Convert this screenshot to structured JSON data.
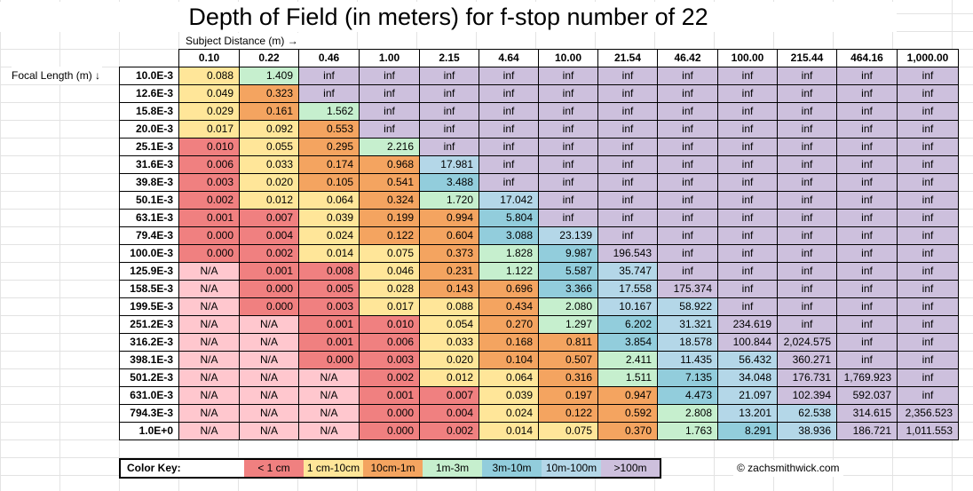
{
  "title": "Depth of Field (in meters) for f-stop number of 22",
  "subject_label": "Subject Distance (m) →",
  "focal_label": "Focal Length (m) ↓",
  "columns": [
    "0.10",
    "0.22",
    "0.46",
    "1.00",
    "2.15",
    "4.64",
    "10.00",
    "21.54",
    "46.42",
    "100.00",
    "215.44",
    "464.16",
    "1,000.00"
  ],
  "rows": [
    {
      "focal": "10.0E-3",
      "cells": [
        "0.088",
        "1.409",
        "inf",
        "inf",
        "inf",
        "inf",
        "inf",
        "inf",
        "inf",
        "inf",
        "inf",
        "inf",
        "inf"
      ],
      "cls": [
        "c2",
        "c4",
        "c7",
        "c7",
        "c7",
        "c7",
        "c7",
        "c7",
        "c7",
        "c7",
        "c7",
        "c7",
        "c7"
      ]
    },
    {
      "focal": "12.6E-3",
      "cells": [
        "0.049",
        "0.323",
        "inf",
        "inf",
        "inf",
        "inf",
        "inf",
        "inf",
        "inf",
        "inf",
        "inf",
        "inf",
        "inf"
      ],
      "cls": [
        "c2",
        "c3",
        "c7",
        "c7",
        "c7",
        "c7",
        "c7",
        "c7",
        "c7",
        "c7",
        "c7",
        "c7",
        "c7"
      ]
    },
    {
      "focal": "15.8E-3",
      "cells": [
        "0.029",
        "0.161",
        "1.562",
        "inf",
        "inf",
        "inf",
        "inf",
        "inf",
        "inf",
        "inf",
        "inf",
        "inf",
        "inf"
      ],
      "cls": [
        "c2",
        "c3",
        "c4",
        "c7",
        "c7",
        "c7",
        "c7",
        "c7",
        "c7",
        "c7",
        "c7",
        "c7",
        "c7"
      ]
    },
    {
      "focal": "20.0E-3",
      "cells": [
        "0.017",
        "0.092",
        "0.553",
        "inf",
        "inf",
        "inf",
        "inf",
        "inf",
        "inf",
        "inf",
        "inf",
        "inf",
        "inf"
      ],
      "cls": [
        "c2",
        "c2",
        "c3",
        "c7",
        "c7",
        "c7",
        "c7",
        "c7",
        "c7",
        "c7",
        "c7",
        "c7",
        "c7"
      ]
    },
    {
      "focal": "25.1E-3",
      "cells": [
        "0.010",
        "0.055",
        "0.295",
        "2.216",
        "inf",
        "inf",
        "inf",
        "inf",
        "inf",
        "inf",
        "inf",
        "inf",
        "inf"
      ],
      "cls": [
        "c1",
        "c2",
        "c3",
        "c4",
        "c7",
        "c7",
        "c7",
        "c7",
        "c7",
        "c7",
        "c7",
        "c7",
        "c7"
      ]
    },
    {
      "focal": "31.6E-3",
      "cells": [
        "0.006",
        "0.033",
        "0.174",
        "0.968",
        "17.981",
        "inf",
        "inf",
        "inf",
        "inf",
        "inf",
        "inf",
        "inf",
        "inf"
      ],
      "cls": [
        "c1",
        "c2",
        "c3",
        "c3",
        "c6",
        "c7",
        "c7",
        "c7",
        "c7",
        "c7",
        "c7",
        "c7",
        "c7"
      ]
    },
    {
      "focal": "39.8E-3",
      "cells": [
        "0.003",
        "0.020",
        "0.105",
        "0.541",
        "3.488",
        "inf",
        "inf",
        "inf",
        "inf",
        "inf",
        "inf",
        "inf",
        "inf"
      ],
      "cls": [
        "c1",
        "c2",
        "c3",
        "c3",
        "c5",
        "c7",
        "c7",
        "c7",
        "c7",
        "c7",
        "c7",
        "c7",
        "c7"
      ]
    },
    {
      "focal": "50.1E-3",
      "cells": [
        "0.002",
        "0.012",
        "0.064",
        "0.324",
        "1.720",
        "17.042",
        "inf",
        "inf",
        "inf",
        "inf",
        "inf",
        "inf",
        "inf"
      ],
      "cls": [
        "c1",
        "c2",
        "c2",
        "c3",
        "c4",
        "c6",
        "c7",
        "c7",
        "c7",
        "c7",
        "c7",
        "c7",
        "c7"
      ]
    },
    {
      "focal": "63.1E-3",
      "cells": [
        "0.001",
        "0.007",
        "0.039",
        "0.199",
        "0.994",
        "5.804",
        "inf",
        "inf",
        "inf",
        "inf",
        "inf",
        "inf",
        "inf"
      ],
      "cls": [
        "c1",
        "c1",
        "c2",
        "c3",
        "c3",
        "c5",
        "c7",
        "c7",
        "c7",
        "c7",
        "c7",
        "c7",
        "c7"
      ]
    },
    {
      "focal": "79.4E-3",
      "cells": [
        "0.000",
        "0.004",
        "0.024",
        "0.122",
        "0.604",
        "3.088",
        "23.139",
        "inf",
        "inf",
        "inf",
        "inf",
        "inf",
        "inf"
      ],
      "cls": [
        "c1",
        "c1",
        "c2",
        "c3",
        "c3",
        "c5",
        "c6",
        "c7",
        "c7",
        "c7",
        "c7",
        "c7",
        "c7"
      ]
    },
    {
      "focal": "100.0E-3",
      "cells": [
        "0.000",
        "0.002",
        "0.014",
        "0.075",
        "0.373",
        "1.828",
        "9.987",
        "196.543",
        "inf",
        "inf",
        "inf",
        "inf",
        "inf"
      ],
      "cls": [
        "c1",
        "c1",
        "c2",
        "c2",
        "c3",
        "c4",
        "c5",
        "c7",
        "c7",
        "c7",
        "c7",
        "c7",
        "c7"
      ]
    },
    {
      "focal": "125.9E-3",
      "cells": [
        "N/A",
        "0.001",
        "0.008",
        "0.046",
        "0.231",
        "1.122",
        "5.587",
        "35.747",
        "inf",
        "inf",
        "inf",
        "inf",
        "inf"
      ],
      "cls": [
        "na",
        "c1",
        "c1",
        "c2",
        "c3",
        "c4",
        "c5",
        "c6",
        "c7",
        "c7",
        "c7",
        "c7",
        "c7"
      ]
    },
    {
      "focal": "158.5E-3",
      "cells": [
        "N/A",
        "0.000",
        "0.005",
        "0.028",
        "0.143",
        "0.696",
        "3.366",
        "17.558",
        "175.374",
        "inf",
        "inf",
        "inf",
        "inf"
      ],
      "cls": [
        "na",
        "c1",
        "c1",
        "c2",
        "c3",
        "c3",
        "c5",
        "c6",
        "c7",
        "c7",
        "c7",
        "c7",
        "c7"
      ]
    },
    {
      "focal": "199.5E-3",
      "cells": [
        "N/A",
        "0.000",
        "0.003",
        "0.017",
        "0.088",
        "0.434",
        "2.080",
        "10.167",
        "58.922",
        "inf",
        "inf",
        "inf",
        "inf"
      ],
      "cls": [
        "na",
        "c1",
        "c1",
        "c2",
        "c2",
        "c3",
        "c4",
        "c6",
        "c6",
        "c7",
        "c7",
        "c7",
        "c7"
      ]
    },
    {
      "focal": "251.2E-3",
      "cells": [
        "N/A",
        "N/A",
        "0.001",
        "0.010",
        "0.054",
        "0.270",
        "1.297",
        "6.202",
        "31.321",
        "234.619",
        "inf",
        "inf",
        "inf"
      ],
      "cls": [
        "na",
        "na",
        "c1",
        "c1",
        "c2",
        "c3",
        "c4",
        "c5",
        "c6",
        "c7",
        "c7",
        "c7",
        "c7"
      ]
    },
    {
      "focal": "316.2E-3",
      "cells": [
        "N/A",
        "N/A",
        "0.001",
        "0.006",
        "0.033",
        "0.168",
        "0.811",
        "3.854",
        "18.578",
        "100.844",
        "2,024.575",
        "inf",
        "inf"
      ],
      "cls": [
        "na",
        "na",
        "c1",
        "c1",
        "c2",
        "c3",
        "c3",
        "c5",
        "c6",
        "c7",
        "c7",
        "c7",
        "c7"
      ]
    },
    {
      "focal": "398.1E-3",
      "cells": [
        "N/A",
        "N/A",
        "0.000",
        "0.003",
        "0.020",
        "0.104",
        "0.507",
        "2.411",
        "11.435",
        "56.432",
        "360.271",
        "inf",
        "inf"
      ],
      "cls": [
        "na",
        "na",
        "c1",
        "c1",
        "c2",
        "c3",
        "c3",
        "c4",
        "c6",
        "c6",
        "c7",
        "c7",
        "c7"
      ]
    },
    {
      "focal": "501.2E-3",
      "cells": [
        "N/A",
        "N/A",
        "N/A",
        "0.002",
        "0.012",
        "0.064",
        "0.316",
        "1.511",
        "7.135",
        "34.048",
        "176.731",
        "1,769.923",
        "inf"
      ],
      "cls": [
        "na",
        "na",
        "na",
        "c1",
        "c2",
        "c2",
        "c3",
        "c4",
        "c5",
        "c6",
        "c7",
        "c7",
        "c7"
      ]
    },
    {
      "focal": "631.0E-3",
      "cells": [
        "N/A",
        "N/A",
        "N/A",
        "0.001",
        "0.007",
        "0.039",
        "0.197",
        "0.947",
        "4.473",
        "21.097",
        "102.394",
        "592.037",
        "inf"
      ],
      "cls": [
        "na",
        "na",
        "na",
        "c1",
        "c1",
        "c2",
        "c3",
        "c3",
        "c5",
        "c6",
        "c7",
        "c7",
        "c7"
      ]
    },
    {
      "focal": "794.3E-3",
      "cells": [
        "N/A",
        "N/A",
        "N/A",
        "0.000",
        "0.004",
        "0.024",
        "0.122",
        "0.592",
        "2.808",
        "13.201",
        "62.538",
        "314.615",
        "2,356.523"
      ],
      "cls": [
        "na",
        "na",
        "na",
        "c1",
        "c1",
        "c2",
        "c3",
        "c3",
        "c4",
        "c6",
        "c6",
        "c7",
        "c7"
      ]
    },
    {
      "focal": "1.0E+0",
      "cells": [
        "N/A",
        "N/A",
        "N/A",
        "0.000",
        "0.002",
        "0.014",
        "0.075",
        "0.370",
        "1.763",
        "8.291",
        "38.936",
        "186.721",
        "1,011.553"
      ],
      "cls": [
        "na",
        "na",
        "na",
        "c1",
        "c1",
        "c2",
        "c2",
        "c3",
        "c4",
        "c5",
        "c6",
        "c7",
        "c7"
      ]
    }
  ],
  "key": {
    "label": "Color Key:",
    "items": [
      {
        "text": "< 1 cm",
        "cls": "c1"
      },
      {
        "text": "1 cm-10cm",
        "cls": "c2"
      },
      {
        "text": "10cm-1m",
        "cls": "c3"
      },
      {
        "text": "1m-3m",
        "cls": "c4"
      },
      {
        "text": "3m-10m",
        "cls": "c5"
      },
      {
        "text": "10m-100m",
        "cls": "c6"
      },
      {
        "text": ">100m",
        "cls": "c7"
      }
    ]
  },
  "copyright": "© zachsmithwick.com",
  "colors": {
    "lt_1cm": "#f08080",
    "1cm_10cm": "#ffe699",
    "10cm_1m": "#f4a460",
    "1m_3m": "#c6efce",
    "3m_10m": "#92cddc",
    "10m_100m": "#b4d7e8",
    "gt_100m": "#cdc0dd",
    "na": "#ffc7ce"
  }
}
